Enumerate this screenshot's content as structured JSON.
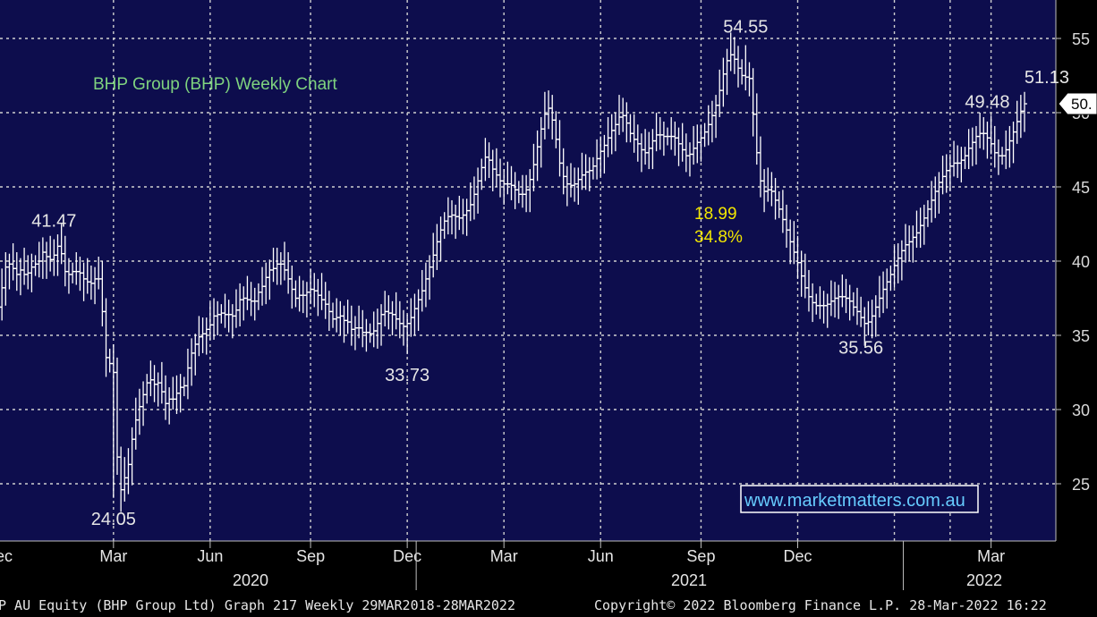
{
  "chart_data": {
    "type": "ohlc",
    "title": "BHP Group (BHP) Weekly Chart",
    "title_color": "#7fd37f",
    "background": "#0d0d4d",
    "bar_color": "#ffffff",
    "ylim": [
      21,
      57
    ],
    "y_ticks": [
      25,
      30,
      35,
      40,
      45,
      50,
      55
    ],
    "y_tick_labels": [
      "25",
      "30",
      "35",
      "40",
      "45",
      "50",
      "55"
    ],
    "last_price_label": "50.",
    "month_labels": [
      "Dec",
      "Mar",
      "Jun",
      "Sep",
      "Dec",
      "Mar",
      "Jun",
      "Sep",
      "Dec",
      "Mar"
    ],
    "year_labels": [
      "2020",
      "2021",
      "2022"
    ],
    "annotations": [
      {
        "text": "41.47",
        "bar": 15,
        "value": 41.47,
        "pos": "above"
      },
      {
        "text": "24.05",
        "bar": 31,
        "value": 24.05,
        "pos": "below"
      },
      {
        "text": "33.73",
        "bar": 110,
        "value": 33.73,
        "pos": "below"
      },
      {
        "text": "54.55",
        "bar": 201,
        "value": 54.55,
        "pos": "above"
      },
      {
        "text": "35.56",
        "bar": 232,
        "value": 35.56,
        "pos": "below"
      },
      {
        "text": "49.48",
        "bar": 266,
        "value": 49.48,
        "pos": "above"
      },
      {
        "text": "51.13",
        "bar": 282,
        "value": 51.13,
        "pos": "above"
      }
    ],
    "move_annotation": {
      "lines": [
        "18.99",
        "34.8%"
      ],
      "color": "#f2e600"
    },
    "watermark": "www.marketmatters.com.au",
    "footer_left": "P AU Equity (BHP Group Ltd) Graph 217  Weekly 29MAR2018-28MAR2022",
    "footer_right": "Copyright© 2022 Bloomberg Finance L.P.   28-Mar-2022 16:22",
    "closes": [
      36.9,
      38.2,
      39.6,
      39.8,
      39.5,
      39.1,
      39.4,
      39.1,
      39.2,
      39.6,
      39.8,
      40.0,
      40.6,
      40.3,
      40.1,
      40.4,
      41.0,
      40.5,
      39.3,
      39.1,
      39.3,
      39.3,
      39.2,
      38.8,
      38.6,
      38.5,
      38.8,
      38.8,
      36.6,
      33.5,
      33.1,
      32.5,
      26.8,
      24.6,
      25.4,
      26.3,
      28.0,
      29.3,
      30.2,
      31.0,
      31.8,
      32.0,
      31.7,
      31.8,
      31.2,
      30.4,
      30.7,
      30.7,
      31.1,
      31.5,
      31.6,
      32.8,
      33.8,
      34.4,
      34.9,
      35.1,
      35.4,
      35.7,
      36.3,
      36.4,
      36.5,
      36.4,
      36.4,
      36.3,
      36.7,
      37.4,
      37.5,
      37.4,
      37.3,
      37.3,
      37.9,
      38.3,
      38.9,
      39.4,
      39.5,
      39.8,
      39.8,
      39.4,
      38.8,
      38.1,
      37.5,
      37.7,
      37.7,
      37.9,
      38.1,
      38.0,
      37.7,
      37.4,
      37.1,
      36.6,
      36.1,
      36.2,
      36.3,
      36.0,
      35.9,
      35.4,
      35.5,
      35.5,
      35.2,
      35.2,
      35.1,
      35.3,
      35.8,
      36.4,
      36.6,
      36.5,
      36.4,
      36.1,
      35.8,
      35.6,
      35.8,
      36.2,
      36.8,
      37.4,
      38.0,
      38.8,
      39.6,
      40.4,
      41.3,
      42.1,
      42.7,
      43.0,
      43.1,
      43.0,
      42.9,
      43.1,
      43.4,
      43.8,
      44.5,
      45.4,
      46.3,
      47.0,
      46.8,
      46.2,
      45.8,
      45.4,
      45.2,
      45.2,
      45.1,
      44.8,
      44.5,
      44.5,
      44.8,
      45.5,
      46.5,
      47.7,
      48.9,
      49.9,
      50.3,
      49.5,
      48.2,
      46.6,
      45.7,
      45.2,
      45.1,
      45.2,
      45.5,
      45.8,
      46.0,
      46.1,
      46.4,
      46.9,
      47.4,
      47.8,
      48.3,
      48.8,
      49.2,
      49.7,
      49.8,
      49.3,
      48.6,
      48.2,
      47.9,
      47.5,
      47.3,
      47.6,
      48.1,
      48.5,
      48.5,
      48.4,
      48.4,
      48.4,
      48.3,
      47.9,
      47.5,
      47.1,
      47.2,
      47.6,
      48.0,
      48.3,
      48.7,
      49.2,
      49.8,
      50.5,
      51.5,
      52.6,
      53.5,
      53.9,
      53.6,
      53.0,
      52.5,
      52.4,
      52.3,
      49.9,
      47.3,
      45.4,
      44.7,
      44.8,
      44.7,
      44.1,
      43.5,
      42.8,
      42.1,
      41.3,
      40.6,
      39.9,
      39.0,
      38.2,
      37.6,
      37.2,
      37.0,
      37.0,
      37.0,
      37.1,
      37.3,
      37.5,
      37.6,
      37.6,
      37.5,
      37.3,
      36.9,
      36.6,
      36.2,
      35.8,
      35.9,
      36.3,
      36.9,
      37.5,
      38.1,
      38.6,
      39.1,
      39.7,
      40.2,
      40.7,
      41.1,
      41.3,
      41.6,
      41.9,
      42.4,
      42.9,
      43.5,
      44.1,
      44.7,
      45.3,
      45.7,
      46.1,
      46.4,
      46.6,
      46.6,
      46.8,
      47.1,
      47.6,
      48.0,
      48.4,
      48.6,
      48.6,
      48.3,
      47.9,
      47.3,
      47.1,
      47.1,
      47.5,
      48.1,
      48.7,
      49.4,
      50.1,
      50.6
    ]
  }
}
